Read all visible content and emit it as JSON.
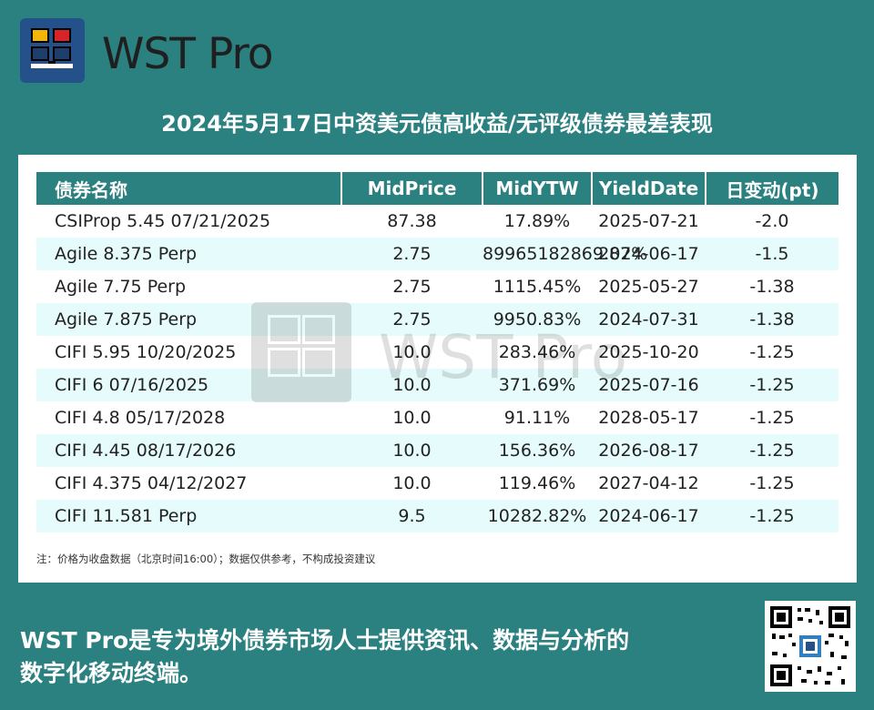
{
  "brand": {
    "name": "WST Pro"
  },
  "report": {
    "title": "2024年5月17日中资美元债高收益/无评级债券最差表现",
    "columns": [
      "债券名称",
      "MidPrice",
      "MidYTW",
      "YieldDate",
      "日变动(pt)"
    ],
    "rows": [
      [
        "CSIProp 5.45 07/21/2025",
        "87.38",
        "17.89%",
        "2025-07-21",
        "-2.0"
      ],
      [
        "Agile 8.375 Perp",
        "2.75",
        "89965182869.87%",
        "2024-06-17",
        "-1.5"
      ],
      [
        "Agile 7.75 Perp",
        "2.75",
        "1115.45%",
        "2025-05-27",
        "-1.38"
      ],
      [
        "Agile 7.875 Perp",
        "2.75",
        "9950.83%",
        "2024-07-31",
        "-1.38"
      ],
      [
        "CIFI 5.95 10/20/2025",
        "10.0",
        "283.46%",
        "2025-10-20",
        "-1.25"
      ],
      [
        "CIFI 6 07/16/2025",
        "10.0",
        "371.69%",
        "2025-07-16",
        "-1.25"
      ],
      [
        "CIFI 4.8 05/17/2028",
        "10.0",
        "91.11%",
        "2028-05-17",
        "-1.25"
      ],
      [
        "CIFI 4.45 08/17/2026",
        "10.0",
        "156.36%",
        "2026-08-17",
        "-1.25"
      ],
      [
        "CIFI 4.375 04/12/2027",
        "10.0",
        "119.46%",
        "2027-04-12",
        "-1.25"
      ],
      [
        "CIFI 11.581 Perp",
        "9.5",
        "10282.82%",
        "2024-06-17",
        "-1.25"
      ]
    ],
    "note": "注：价格为收盘数据（北京时间16:00）；数据仅供参考，不构成投资建议"
  },
  "watermark": "WST Pro",
  "footer": {
    "line1": "WST Pro是专为境外债券市场人士提供资讯、数据与分析的",
    "line2": "数字化移动终端。"
  }
}
